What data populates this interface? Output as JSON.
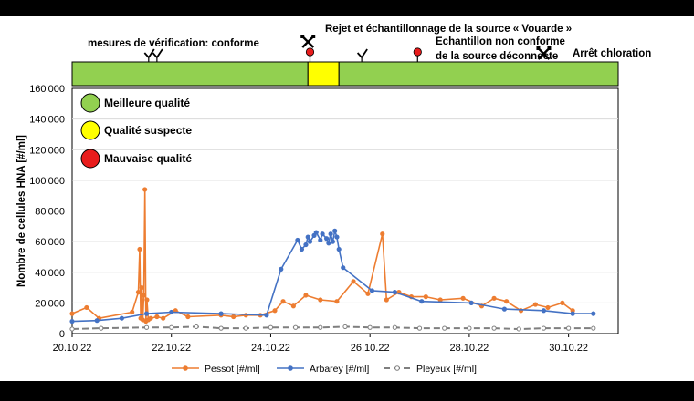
{
  "chart_data": {
    "type": "line",
    "ylabel": "Nombre de cellules HNA [#/ml]",
    "xlabel": "",
    "ylim": [
      0,
      160000
    ],
    "yticks": [
      0,
      20000,
      40000,
      60000,
      80000,
      100000,
      120000,
      140000,
      160000
    ],
    "ytick_labels": [
      "0",
      "20'000",
      "40'000",
      "60'000",
      "80'000",
      "100'000",
      "120'000",
      "140'000",
      "160'000"
    ],
    "xlim": [
      "2022-10-20",
      "2022-10-31"
    ],
    "xticks": [
      "2022-10-20",
      "2022-10-22",
      "2022-10-24",
      "2022-10-26",
      "2022-10-28",
      "2022-10-30"
    ],
    "xtick_labels": [
      "20.10.22",
      "22.10.22",
      "24.10.22",
      "26.10.22",
      "28.10.22",
      "30.10.22"
    ],
    "grid": "horizontal",
    "legend_position": "bottom",
    "series": [
      {
        "name": "Pessot [#/ml]",
        "color": "#ED7D31",
        "style": "solid",
        "marker": "filled",
        "points": [
          [
            "2022-10-20 00:00",
            13000
          ],
          [
            "2022-10-20 07:00",
            17000
          ],
          [
            "2022-10-20 13:00",
            10000
          ],
          [
            "2022-10-21 05:00",
            14000
          ],
          [
            "2022-10-21 08:00",
            27000
          ],
          [
            "2022-10-21 08:40",
            55000
          ],
          [
            "2022-10-21 09:10",
            10000
          ],
          [
            "2022-10-21 09:40",
            30000
          ],
          [
            "2022-10-21 10:10",
            9000
          ],
          [
            "2022-10-21 10:40",
            25000
          ],
          [
            "2022-10-21 11:10",
            94000
          ],
          [
            "2022-10-21 11:40",
            8000
          ],
          [
            "2022-10-21 12:10",
            22000
          ],
          [
            "2022-10-21 12:50",
            9000
          ],
          [
            "2022-10-21 14:00",
            10000
          ],
          [
            "2022-10-21 17:00",
            11000
          ],
          [
            "2022-10-21 20:00",
            10000
          ],
          [
            "2022-10-22 02:00",
            15000
          ],
          [
            "2022-10-22 08:00",
            11000
          ],
          [
            "2022-10-23 00:00",
            12000
          ],
          [
            "2022-10-23 06:00",
            11000
          ],
          [
            "2022-10-23 12:00",
            12000
          ],
          [
            "2022-10-23 19:00",
            12000
          ],
          [
            "2022-10-24 02:00",
            15000
          ],
          [
            "2022-10-24 06:00",
            21000
          ],
          [
            "2022-10-24 11:00",
            18000
          ],
          [
            "2022-10-24 17:00",
            25000
          ],
          [
            "2022-10-25 00:00",
            22000
          ],
          [
            "2022-10-25 08:00",
            21000
          ],
          [
            "2022-10-25 16:00",
            34000
          ],
          [
            "2022-10-25 23:00",
            26000
          ],
          [
            "2022-10-26 06:00",
            65000
          ],
          [
            "2022-10-26 08:00",
            22000
          ],
          [
            "2022-10-26 14:00",
            27000
          ],
          [
            "2022-10-26 20:00",
            24000
          ],
          [
            "2022-10-27 03:00",
            24000
          ],
          [
            "2022-10-27 10:00",
            22000
          ],
          [
            "2022-10-27 21:00",
            23000
          ],
          [
            "2022-10-28 06:00",
            18000
          ],
          [
            "2022-10-28 12:00",
            23000
          ],
          [
            "2022-10-28 18:00",
            21000
          ],
          [
            "2022-10-29 01:00",
            15000
          ],
          [
            "2022-10-29 08:00",
            19000
          ],
          [
            "2022-10-29 14:00",
            17000
          ],
          [
            "2022-10-29 21:00",
            20000
          ],
          [
            "2022-10-30 02:00",
            15000
          ]
        ]
      },
      {
        "name": "Arbarey [#/ml]",
        "color": "#4472C4",
        "style": "solid",
        "marker": "filled",
        "points": [
          [
            "2022-10-20 00:00",
            8000
          ],
          [
            "2022-10-20 12:00",
            8500
          ],
          [
            "2022-10-21 00:00",
            10000
          ],
          [
            "2022-10-21 12:00",
            13000
          ],
          [
            "2022-10-22 00:00",
            14000
          ],
          [
            "2022-10-23 00:00",
            13000
          ],
          [
            "2022-10-23 22:00",
            12000
          ],
          [
            "2022-10-24 05:00",
            42000
          ],
          [
            "2022-10-24 13:00",
            61000
          ],
          [
            "2022-10-24 15:00",
            55000
          ],
          [
            "2022-10-24 17:00",
            58000
          ],
          [
            "2022-10-24 18:00",
            63000
          ],
          [
            "2022-10-24 19:00",
            60000
          ],
          [
            "2022-10-24 21:00",
            64000
          ],
          [
            "2022-10-24 22:00",
            66000
          ],
          [
            "2022-10-25 00:00",
            61000
          ],
          [
            "2022-10-25 01:00",
            65000
          ],
          [
            "2022-10-25 03:00",
            62000
          ],
          [
            "2022-10-25 04:00",
            59000
          ],
          [
            "2022-10-25 05:00",
            65000
          ],
          [
            "2022-10-25 06:00",
            60000
          ],
          [
            "2022-10-25 07:00",
            67000
          ],
          [
            "2022-10-25 08:00",
            63000
          ],
          [
            "2022-10-25 09:00",
            55000
          ],
          [
            "2022-10-25 11:00",
            43000
          ],
          [
            "2022-10-26 01:00",
            28000
          ],
          [
            "2022-10-26 12:00",
            27000
          ],
          [
            "2022-10-27 01:00",
            21000
          ],
          [
            "2022-10-28 01:00",
            20000
          ],
          [
            "2022-10-28 17:00",
            16000
          ],
          [
            "2022-10-29 12:00",
            15000
          ],
          [
            "2022-10-30 02:00",
            13000
          ],
          [
            "2022-10-30 12:00",
            13000
          ]
        ]
      },
      {
        "name": "Pleyeux  [#/ml]",
        "color": "#7F7F7F",
        "style": "dashed",
        "marker": "hollow",
        "points": [
          [
            "2022-10-20 00:00",
            3000
          ],
          [
            "2022-10-20 14:00",
            3500
          ],
          [
            "2022-10-21 12:00",
            4000
          ],
          [
            "2022-10-22 00:00",
            4000
          ],
          [
            "2022-10-22 12:00",
            4500
          ],
          [
            "2022-10-23 00:00",
            3500
          ],
          [
            "2022-10-23 12:00",
            3500
          ],
          [
            "2022-10-24 00:00",
            4000
          ],
          [
            "2022-10-24 12:00",
            4000
          ],
          [
            "2022-10-25 00:00",
            4000
          ],
          [
            "2022-10-25 12:00",
            4500
          ],
          [
            "2022-10-26 00:00",
            4000
          ],
          [
            "2022-10-26 12:00",
            4000
          ],
          [
            "2022-10-27 00:00",
            3500
          ],
          [
            "2022-10-27 12:00",
            3500
          ],
          [
            "2022-10-28 00:00",
            3500
          ],
          [
            "2022-10-28 12:00",
            3500
          ],
          [
            "2022-10-29 00:00",
            3000
          ],
          [
            "2022-10-29 12:00",
            3500
          ],
          [
            "2022-10-30 00:00",
            3500
          ],
          [
            "2022-10-30 12:00",
            3500
          ]
        ]
      }
    ],
    "quality_band": [
      {
        "from": "2022-10-20 00:00",
        "to": "2022-10-24 18:00",
        "quality": "Meilleure qualité",
        "color": "#92D050"
      },
      {
        "from": "2022-10-24 18:00",
        "to": "2022-10-25 09:00",
        "quality": "Qualité suspecte",
        "color": "#FFFF00"
      },
      {
        "from": "2022-10-25 09:00",
        "to": "2022-10-31 00:00",
        "quality": "Meilleure qualité",
        "color": "#92D050"
      }
    ],
    "quality_legend": [
      {
        "label": "Meilleure qualité",
        "color": "#92D050"
      },
      {
        "label": "Qualité suspecte",
        "color": "#FFFF00"
      },
      {
        "label": "Mauvaise qualité",
        "color": "#E81C1C"
      }
    ],
    "event_markers": [
      {
        "time": "2022-10-21 13:00",
        "icon": "check-icon"
      },
      {
        "time": "2022-10-21 17:00",
        "icon": "check-icon"
      },
      {
        "time": "2022-10-24 18:00",
        "icon": "tools-crossed-icon"
      },
      {
        "time": "2022-10-24 19:00",
        "icon": "red-dot-icon",
        "color": "#E81C1C"
      },
      {
        "time": "2022-10-25 20:00",
        "icon": "check-icon"
      },
      {
        "time": "2022-10-26 23:00",
        "icon": "red-dot-icon",
        "color": "#E81C1C"
      },
      {
        "time": "2022-10-29 12:00",
        "icon": "tools-crossed-icon"
      }
    ],
    "annotations": [
      {
        "text": "mesures de vérification: conforme"
      },
      {
        "text": "Rejet et échantillonnage de la source « Vouarde »"
      },
      {
        "text": "Echantillon non conforme"
      },
      {
        "text": "de la source déconnecte"
      },
      {
        "text": "Arrêt chloration"
      }
    ]
  }
}
